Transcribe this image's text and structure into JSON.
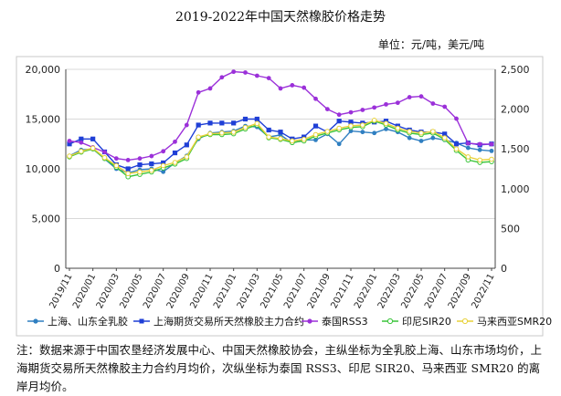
{
  "chart_data": {
    "type": "line",
    "title": "2019-2022年中国天然橡胶价格走势",
    "unit_label": "单位：元/吨，美元/吨",
    "x": [
      "2019/11",
      "2019/12",
      "2020/01",
      "2020/02",
      "2020/03",
      "2020/04",
      "2020/05",
      "2020/06",
      "2020/07",
      "2020/08",
      "2020/09",
      "2020/10",
      "2020/11",
      "2020/12",
      "2021/01",
      "2021/02",
      "2021/03",
      "2021/04",
      "2021/05",
      "2021/06",
      "2021/07",
      "2021/08",
      "2021/09",
      "2021/10",
      "2021/11",
      "2021/12",
      "2022/01",
      "2022/02",
      "2022/03",
      "2022/04",
      "2022/05",
      "2022/06",
      "2022/07",
      "2022/08",
      "2022/09",
      "2022/10",
      "2022/11"
    ],
    "x_tick_labels": [
      "2019/11",
      "2020/01",
      "2020/03",
      "2020/05",
      "2020/07",
      "2020/09",
      "2020/11",
      "2021/01",
      "2021/03",
      "2021/05",
      "2021/07",
      "2021/09",
      "2021/11",
      "2022/01",
      "2022/03",
      "2022/05",
      "2022/07",
      "2022/09",
      "2022/11"
    ],
    "y_left": {
      "ylim": [
        0,
        20000
      ],
      "ticks": [
        "0",
        "5,000",
        "10,000",
        "15,000",
        "20,000"
      ]
    },
    "y_right": {
      "ylim": [
        0,
        2500
      ],
      "ticks": [
        "0",
        "500",
        "1,000",
        "1,500",
        "2,000",
        "2,500"
      ]
    },
    "grid": true,
    "legend_position": "bottom",
    "series": [
      {
        "name": "上海、山东全乳胶",
        "axis": "left",
        "color": "#2f7fc1",
        "marker": "circle",
        "values": [
          11300,
          11900,
          12000,
          11000,
          10000,
          9600,
          9900,
          10000,
          9700,
          10600,
          11300,
          13000,
          13600,
          13700,
          13800,
          14300,
          14200,
          13200,
          13400,
          12600,
          12900,
          12900,
          13500,
          12500,
          13800,
          13700,
          13600,
          14000,
          13700,
          13100,
          12800,
          13100,
          12900,
          12600,
          12100,
          11900,
          11800
        ]
      },
      {
        "name": "上海期货交易所天然橡胶主力合约",
        "axis": "left",
        "color": "#1f3fd6",
        "marker": "square",
        "values": [
          12500,
          13000,
          13000,
          11700,
          10400,
          10000,
          10400,
          10500,
          10600,
          11600,
          12400,
          14400,
          14600,
          14600,
          14600,
          15000,
          15000,
          13900,
          13700,
          13000,
          13200,
          14300,
          13700,
          14800,
          14700,
          14600,
          14700,
          14800,
          14300,
          13900,
          13700,
          13700,
          13500,
          12500,
          12600,
          12400,
          12500
        ]
      },
      {
        "name": "泰国RSS3",
        "axis": "right",
        "color": "#9b30d9",
        "marker": "circle",
        "values": [
          1600,
          1580,
          1520,
          1460,
          1380,
          1360,
          1380,
          1410,
          1470,
          1590,
          1800,
          2210,
          2260,
          2400,
          2470,
          2460,
          2420,
          2390,
          2260,
          2300,
          2270,
          2130,
          2000,
          1930,
          1960,
          1990,
          2020,
          2060,
          2080,
          2150,
          2160,
          2070,
          2030,
          1880,
          1570,
          1560,
          1560
        ]
      },
      {
        "name": "印尼SIR20",
        "axis": "right",
        "color": "#3ac43a",
        "marker": "circle",
        "values": [
          1400,
          1460,
          1500,
          1380,
          1270,
          1150,
          1180,
          1210,
          1260,
          1310,
          1380,
          1640,
          1680,
          1680,
          1690,
          1750,
          1800,
          1640,
          1620,
          1580,
          1600,
          1660,
          1700,
          1740,
          1770,
          1780,
          1850,
          1800,
          1740,
          1700,
          1680,
          1700,
          1620,
          1480,
          1360,
          1330,
          1340
        ]
      },
      {
        "name": "马来西亚SMR20",
        "axis": "right",
        "color": "#e8d23a",
        "marker": "circle",
        "values": [
          1410,
          1470,
          1510,
          1390,
          1290,
          1190,
          1210,
          1230,
          1290,
          1330,
          1400,
          1650,
          1690,
          1700,
          1710,
          1770,
          1820,
          1650,
          1630,
          1600,
          1620,
          1680,
          1720,
          1760,
          1790,
          1800,
          1860,
          1820,
          1760,
          1720,
          1700,
          1720,
          1640,
          1500,
          1400,
          1360,
          1370
        ]
      }
    ],
    "note": "注：数据来源于中国农垦经济发展中心、中国天然橡胶协会，主纵坐标为全乳胶上海、山东市场均价，上海期货交易所天然橡胶主力合约月均价，次纵坐标为泰国 RSS3、印尼 SIR20、马来西亚 SMR20 的离岸月均价。"
  }
}
